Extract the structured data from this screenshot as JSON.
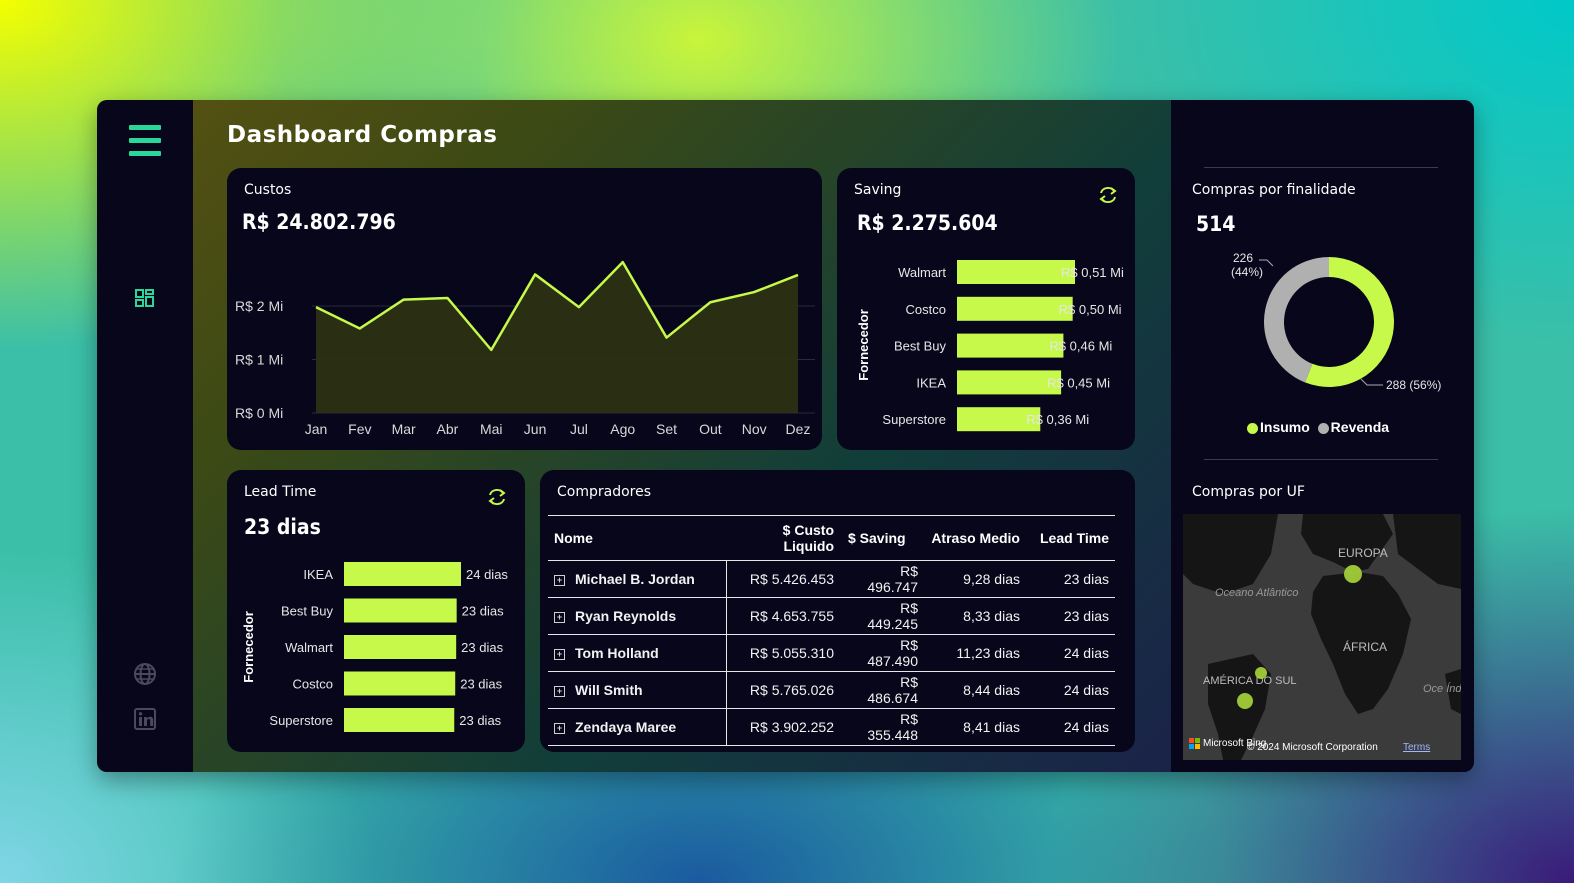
{
  "app": {
    "title": "Dashboard Compras"
  },
  "colors": {
    "accent": "#c6f94a",
    "sidebar_icon": "#2ad69a",
    "panel_bg": "#07061a",
    "grey_slice": "#b0b0b0"
  },
  "sidebar": {
    "icons": [
      "menu-icon",
      "dashboard-grid-icon",
      "globe-icon",
      "linkedin-icon"
    ]
  },
  "custos": {
    "title": "Custos",
    "value": "R$ 24.802.796",
    "y_ticks": [
      "R$ 0 Mi",
      "R$ 1 Mi",
      "R$ 2 Mi"
    ],
    "chart_data": {
      "type": "area",
      "categories": [
        "Jan",
        "Fev",
        "Mar",
        "Abr",
        "Mai",
        "Jun",
        "Jul",
        "Ago",
        "Set",
        "Out",
        "Nov",
        "Dez"
      ],
      "values": [
        1.98,
        1.58,
        2.12,
        2.15,
        1.18,
        2.59,
        1.98,
        2.82,
        1.41,
        2.07,
        2.26,
        2.58
      ],
      "ylim": [
        0,
        3.0
      ],
      "ylabel": "",
      "xlabel": ""
    }
  },
  "saving": {
    "title": "Saving",
    "value": "R$ 2.275.604",
    "axis_title": "Fornecedor",
    "chart_data": {
      "type": "bar",
      "orientation": "horizontal",
      "categories": [
        "Walmart",
        "Costco",
        "Best Buy",
        "IKEA",
        "Superstore"
      ],
      "values": [
        0.51,
        0.5,
        0.46,
        0.45,
        0.36
      ],
      "labels": [
        "R$ 0,51 Mi",
        "R$ 0,50 Mi",
        "R$ 0,46 Mi",
        "R$ 0,45 Mi",
        "R$ 0,36 Mi"
      ],
      "xlim": [
        0,
        0.51
      ]
    }
  },
  "lead_time": {
    "title": "Lead Time",
    "value": "23 dias",
    "axis_title": "Fornecedor",
    "chart_data": {
      "type": "bar",
      "orientation": "horizontal",
      "categories": [
        "IKEA",
        "Best Buy",
        "Walmart",
        "Costco",
        "Superstore"
      ],
      "values": [
        24.3,
        23.4,
        23.3,
        23.1,
        22.9
      ],
      "labels": [
        "24 dias",
        "23 dias",
        "23 dias",
        "23 dias",
        "23 dias"
      ],
      "xlim": [
        0,
        24.3
      ]
    }
  },
  "compradores": {
    "title": "Compradores",
    "columns": [
      "Nome",
      "$ Custo Liquido",
      "$ Saving",
      "Atraso Medio",
      "Lead Time"
    ],
    "rows": [
      [
        "Michael B. Jordan",
        "R$ 5.426.453",
        "R$ 496.747",
        "9,28 dias",
        "23 dias"
      ],
      [
        "Ryan Reynolds",
        "R$ 4.653.755",
        "R$ 449.245",
        "8,33 dias",
        "23 dias"
      ],
      [
        "Tom Holland",
        "R$ 5.055.310",
        "R$ 487.490",
        "11,23 dias",
        "24 dias"
      ],
      [
        "Will Smith",
        "R$ 5.765.026",
        "R$ 486.674",
        "8,44 dias",
        "24 dias"
      ],
      [
        "Zendaya Maree",
        "R$ 3.902.252",
        "R$ 355.448",
        "8,41 dias",
        "24 dias"
      ]
    ]
  },
  "finalidade": {
    "title": "Compras por finalidade",
    "value": "514",
    "chart_data": {
      "type": "pie",
      "labels": [
        "Insumo",
        "Revenda"
      ],
      "values": [
        288,
        226
      ],
      "data_labels": [
        "288 (56%)",
        "226 (44%)"
      ],
      "colors": [
        "#c6f94a",
        "#b0b0b0"
      ]
    },
    "legend": [
      "Insumo",
      "Revenda"
    ]
  },
  "uf": {
    "title": "Compras por UF",
    "map_labels": [
      "EUROPA",
      "Oceano Atlântico",
      "ÁFRICA",
      "AMÉRICA DO SUL",
      "Oce Índ"
    ],
    "attribution": "Microsoft Bing",
    "copyright": "© 2024 Microsoft Corporation",
    "terms": "Terms"
  }
}
